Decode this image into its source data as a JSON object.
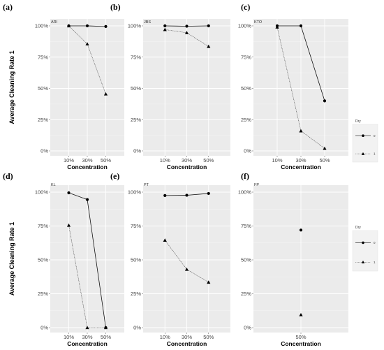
{
  "chart_data": [
    {
      "type": "line",
      "panel": "(a)",
      "strip": "ARI",
      "categories": [
        "10%",
        "30%",
        "50%"
      ],
      "xlabel": "Concentration",
      "ylabel": "Average Cleaning Rate 1",
      "yticks": [
        "0%",
        "25%",
        "50%",
        "75%",
        "100%"
      ],
      "ylim": [
        0,
        1
      ],
      "series": [
        {
          "name": "0",
          "marker": "circle",
          "values": [
            1.0,
            1.0,
            0.995
          ]
        },
        {
          "name": "1",
          "marker": "triangle",
          "values": [
            1.0,
            0.855,
            0.455
          ]
        }
      ]
    },
    {
      "type": "line",
      "panel": "(b)",
      "strip": "JBS",
      "categories": [
        "10%",
        "30%",
        "50%"
      ],
      "xlabel": "Concentration",
      "ylabel": "",
      "yticks": [
        "0%",
        "25%",
        "50%",
        "75%",
        "100%"
      ],
      "ylim": [
        0,
        1
      ],
      "series": [
        {
          "name": "0",
          "marker": "circle",
          "values": [
            1.0,
            0.997,
            1.0
          ]
        },
        {
          "name": "1",
          "marker": "triangle",
          "values": [
            0.97,
            0.945,
            0.835
          ]
        }
      ]
    },
    {
      "type": "line",
      "panel": "(c)",
      "strip": "KTO",
      "categories": [
        "10%",
        "30%",
        "50%"
      ],
      "xlabel": "Concentration",
      "ylabel": "",
      "yticks": [
        "0%",
        "25%",
        "50%",
        "75%",
        "100%"
      ],
      "ylim": [
        0,
        1
      ],
      "series": [
        {
          "name": "0",
          "marker": "circle",
          "values": [
            1.0,
            1.0,
            0.4
          ]
        },
        {
          "name": "1",
          "marker": "triangle",
          "values": [
            0.99,
            0.16,
            0.02
          ]
        }
      ]
    },
    {
      "type": "line",
      "panel": "(d)",
      "strip": "KL",
      "categories": [
        "10%",
        "30%",
        "50%"
      ],
      "xlabel": "Concentration",
      "ylabel": "Average Cleaning Rate 1",
      "yticks": [
        "0%",
        "25%",
        "50%",
        "75%",
        "100%"
      ],
      "ylim": [
        0,
        1
      ],
      "series": [
        {
          "name": "0",
          "marker": "circle",
          "values": [
            0.995,
            0.945,
            0.0
          ]
        },
        {
          "name": "1",
          "marker": "triangle",
          "values": [
            0.755,
            0.0,
            0.0
          ]
        }
      ]
    },
    {
      "type": "line",
      "panel": "(e)",
      "strip": "PT",
      "categories": [
        "10%",
        "30%",
        "50%"
      ],
      "xlabel": "Concentration",
      "ylabel": "",
      "yticks": [
        "0%",
        "25%",
        "50%",
        "75%",
        "100%"
      ],
      "ylim": [
        0,
        1
      ],
      "series": [
        {
          "name": "0",
          "marker": "circle",
          "values": [
            0.975,
            0.977,
            0.99
          ]
        },
        {
          "name": "1",
          "marker": "triangle",
          "values": [
            0.645,
            0.43,
            0.335
          ]
        }
      ]
    },
    {
      "type": "line",
      "panel": "(f)",
      "strip": "FP",
      "categories": [
        "50%"
      ],
      "xlabel": "Concentration",
      "ylabel": "",
      "yticks": [
        "0%",
        "25%",
        "50%",
        "75%",
        "100%"
      ],
      "ylim": [
        0,
        1
      ],
      "series": [
        {
          "name": "0",
          "marker": "circle",
          "values": [
            0.72
          ]
        },
        {
          "name": "1",
          "marker": "triangle",
          "values": [
            0.095
          ]
        }
      ]
    }
  ],
  "legends": [
    {
      "title": "Dry",
      "entries": [
        {
          "label": "0",
          "marker": "circle"
        },
        {
          "label": "1",
          "marker": "triangle"
        }
      ]
    },
    {
      "title": "Dry",
      "entries": [
        {
          "label": "0",
          "marker": "circle"
        },
        {
          "label": "1",
          "marker": "triangle"
        }
      ]
    }
  ],
  "colors": {
    "panel_background": "#ebebeb",
    "grid_major": "#ffffff",
    "series_0": "#111111",
    "series_1": "#555555",
    "legend_background": "#f2f2f2"
  }
}
